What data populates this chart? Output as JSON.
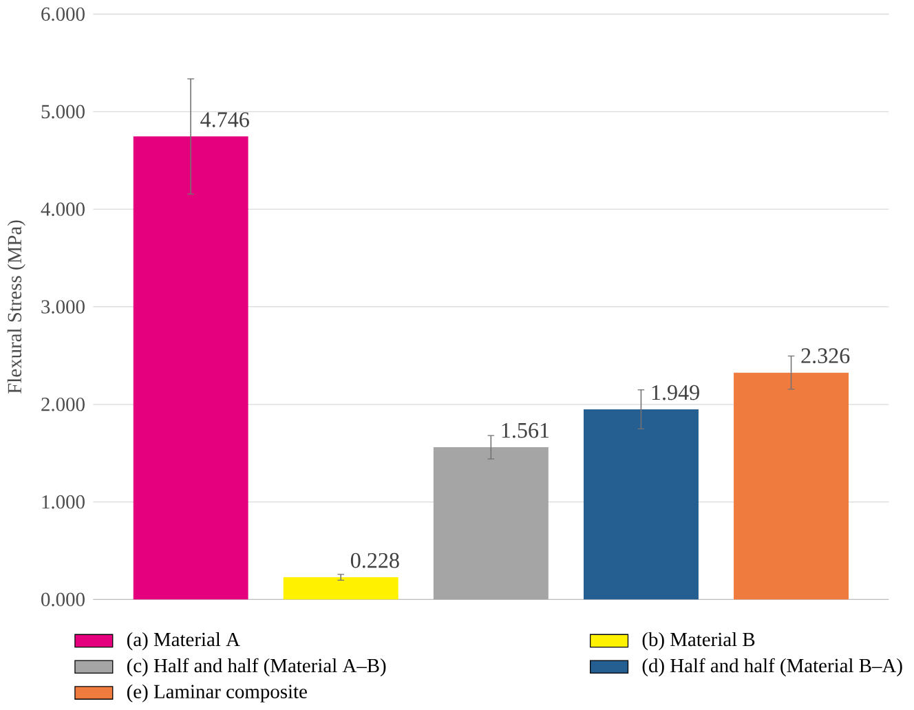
{
  "chart_data": {
    "type": "bar",
    "ylabel": "Flexural Stress (MPa)",
    "categories": [
      null,
      null,
      null,
      null,
      null
    ],
    "ylim": [
      0,
      6
    ],
    "yticks": [
      {
        "value": 0,
        "label": "0.000"
      },
      {
        "value": 1,
        "label": "1.000"
      },
      {
        "value": 2,
        "label": "2.000"
      },
      {
        "value": 3,
        "label": "3.000"
      },
      {
        "value": 4,
        "label": "4.000"
      },
      {
        "value": 5,
        "label": "5.000"
      },
      {
        "value": 6,
        "label": "6.000"
      }
    ],
    "grid": "y",
    "legend": "bottom",
    "series": [
      {
        "name": "(a) Material A",
        "color": "#e5007d",
        "values": [
          4.746,
          null,
          null,
          null,
          null
        ],
        "errors": [
          0.59,
          null,
          null,
          null,
          null
        ],
        "value_labels": [
          "4.746",
          null,
          null,
          null,
          null
        ]
      },
      {
        "name": "(b) Material B",
        "color": "#fff100",
        "values": [
          null,
          0.228,
          null,
          null,
          null
        ],
        "errors": [
          null,
          0.03,
          null,
          null,
          null
        ],
        "value_labels": [
          null,
          "0.228",
          null,
          null,
          null
        ]
      },
      {
        "name": "(c) Half and half (Material A–B)",
        "color": "#a5a5a5",
        "values": [
          null,
          null,
          1.561,
          null,
          null
        ],
        "errors": [
          null,
          null,
          0.12,
          null,
          null
        ],
        "value_labels": [
          null,
          null,
          "1.561",
          null,
          null
        ]
      },
      {
        "name": "(d) Half and half (Material B–A)",
        "color": "#255e91",
        "values": [
          null,
          null,
          null,
          1.949,
          null
        ],
        "errors": [
          null,
          null,
          null,
          0.2,
          null
        ],
        "value_labels": [
          null,
          null,
          null,
          "1.949",
          null
        ]
      },
      {
        "name": "(e) Laminar composite",
        "color": "#f07b3f",
        "values": [
          null,
          null,
          null,
          null,
          2.326
        ],
        "errors": [
          null,
          null,
          null,
          null,
          0.17
        ],
        "value_labels": [
          null,
          null,
          null,
          null,
          "2.326"
        ]
      }
    ]
  }
}
